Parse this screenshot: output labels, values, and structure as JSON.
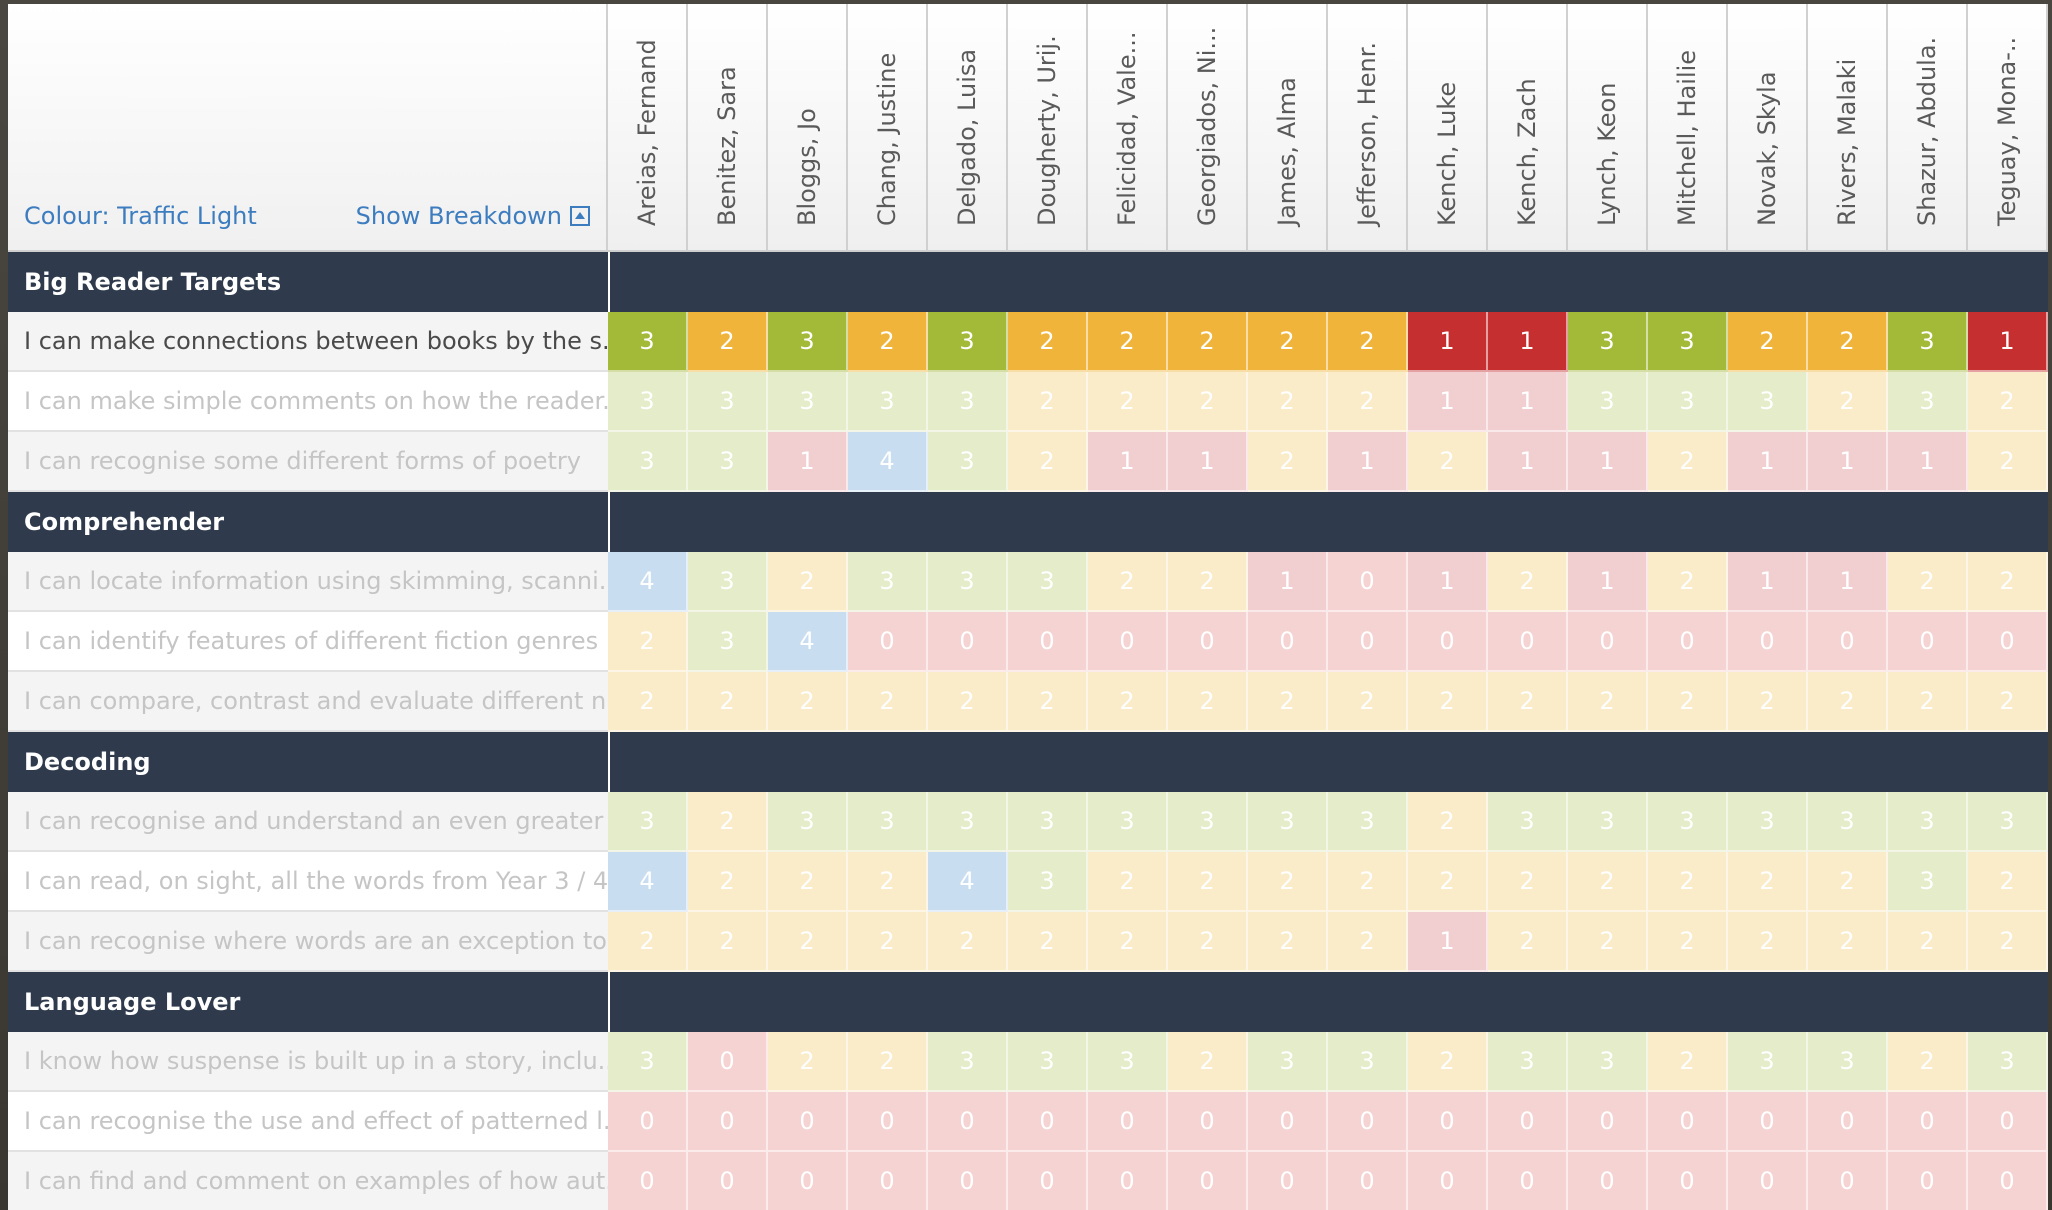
{
  "header": {
    "colour_label": "Colour: Traffic Light",
    "breakdown_label": "Show Breakdown"
  },
  "students": [
    "Areias, Fernand",
    "Benitez, Sara",
    "Bloggs, Jo",
    "Chang, Justine",
    "Delgado, Luisa",
    "Dougherty, Urij.",
    "Felicidad, Vale...",
    "Georgiados, Ni...",
    "James, Alma",
    "Jefferson, Henr.",
    "Kench, Luke",
    "Kench, Zach",
    "Lynch, Keon",
    "Mitchell, Hailie",
    "Novak, Skyla",
    "Rivers, Malaki",
    "Shazur, Abdula.",
    "Teguay, Mona-.."
  ],
  "score_colors": {
    "strong": {
      "0": "#c62f2f",
      "1": "#c62f2f",
      "2": "#f0b43a",
      "3": "#a3b938",
      "4": "#8fb4dd"
    },
    "faint": {
      "0": "#f6d3d3",
      "1": "#f1cfd1",
      "2": "#faebc9",
      "3": "#e4ecc9",
      "4": "#c9ddf0"
    }
  },
  "sections": [
    {
      "title": "Big Reader Targets",
      "rows": [
        {
          "label": "I can make connections between books by the s...",
          "emphasis": "strong",
          "scores": [
            3,
            2,
            3,
            2,
            3,
            2,
            2,
            2,
            2,
            2,
            1,
            1,
            3,
            3,
            2,
            2,
            3,
            1
          ]
        },
        {
          "label": "I can make simple comments on how the reader...",
          "emphasis": "faint",
          "scores": [
            3,
            3,
            3,
            3,
            3,
            2,
            2,
            2,
            2,
            2,
            1,
            1,
            3,
            3,
            3,
            2,
            3,
            2
          ]
        },
        {
          "label": "I can recognise some different forms of poetry",
          "emphasis": "faint",
          "scores": [
            3,
            3,
            1,
            4,
            3,
            2,
            1,
            1,
            2,
            1,
            2,
            1,
            1,
            2,
            1,
            1,
            1,
            2
          ]
        }
      ]
    },
    {
      "title": "Comprehender",
      "rows": [
        {
          "label": "I can locate information using skimming, scanni...",
          "emphasis": "faint",
          "scores": [
            4,
            3,
            2,
            3,
            3,
            3,
            2,
            2,
            1,
            0,
            1,
            2,
            1,
            2,
            1,
            1,
            2,
            2
          ]
        },
        {
          "label": "I can identify features of different fiction genres",
          "emphasis": "faint",
          "scores": [
            2,
            3,
            4,
            0,
            0,
            0,
            0,
            0,
            0,
            0,
            0,
            0,
            0,
            0,
            0,
            0,
            0,
            0
          ]
        },
        {
          "label": "I can compare, contrast and evaluate different n...",
          "emphasis": "faint",
          "scores": [
            2,
            2,
            2,
            2,
            2,
            2,
            2,
            2,
            2,
            2,
            2,
            2,
            2,
            2,
            2,
            2,
            2,
            2
          ]
        }
      ]
    },
    {
      "title": "Decoding",
      "rows": [
        {
          "label": "I can recognise and understand an even greater ...",
          "emphasis": "faint",
          "scores": [
            3,
            2,
            3,
            3,
            3,
            3,
            3,
            3,
            3,
            3,
            2,
            3,
            3,
            3,
            3,
            3,
            3,
            3
          ]
        },
        {
          "label": "I can read, on sight, all the words from Year 3 / 4...",
          "emphasis": "faint",
          "scores": [
            4,
            2,
            2,
            2,
            4,
            3,
            2,
            2,
            2,
            2,
            2,
            2,
            2,
            2,
            2,
            2,
            3,
            2
          ]
        },
        {
          "label": "I can recognise where words are an exception to...",
          "emphasis": "faint",
          "scores": [
            2,
            2,
            2,
            2,
            2,
            2,
            2,
            2,
            2,
            2,
            1,
            2,
            2,
            2,
            2,
            2,
            2,
            2
          ]
        }
      ]
    },
    {
      "title": "Language Lover",
      "rows": [
        {
          "label": "I know how suspense is built up in a story, inclu...",
          "emphasis": "faint",
          "scores": [
            3,
            0,
            2,
            2,
            3,
            3,
            3,
            2,
            3,
            3,
            2,
            3,
            3,
            2,
            3,
            3,
            2,
            3
          ]
        },
        {
          "label": "I can recognise the use and effect of patterned l...",
          "emphasis": "faint",
          "scores": [
            0,
            0,
            0,
            0,
            0,
            0,
            0,
            0,
            0,
            0,
            0,
            0,
            0,
            0,
            0,
            0,
            0,
            0
          ]
        },
        {
          "label": "I can find and comment on examples of how aut...",
          "emphasis": "faint",
          "scores": [
            0,
            0,
            0,
            0,
            0,
            0,
            0,
            0,
            0,
            0,
            0,
            0,
            0,
            0,
            0,
            0,
            0,
            0
          ]
        }
      ]
    }
  ]
}
